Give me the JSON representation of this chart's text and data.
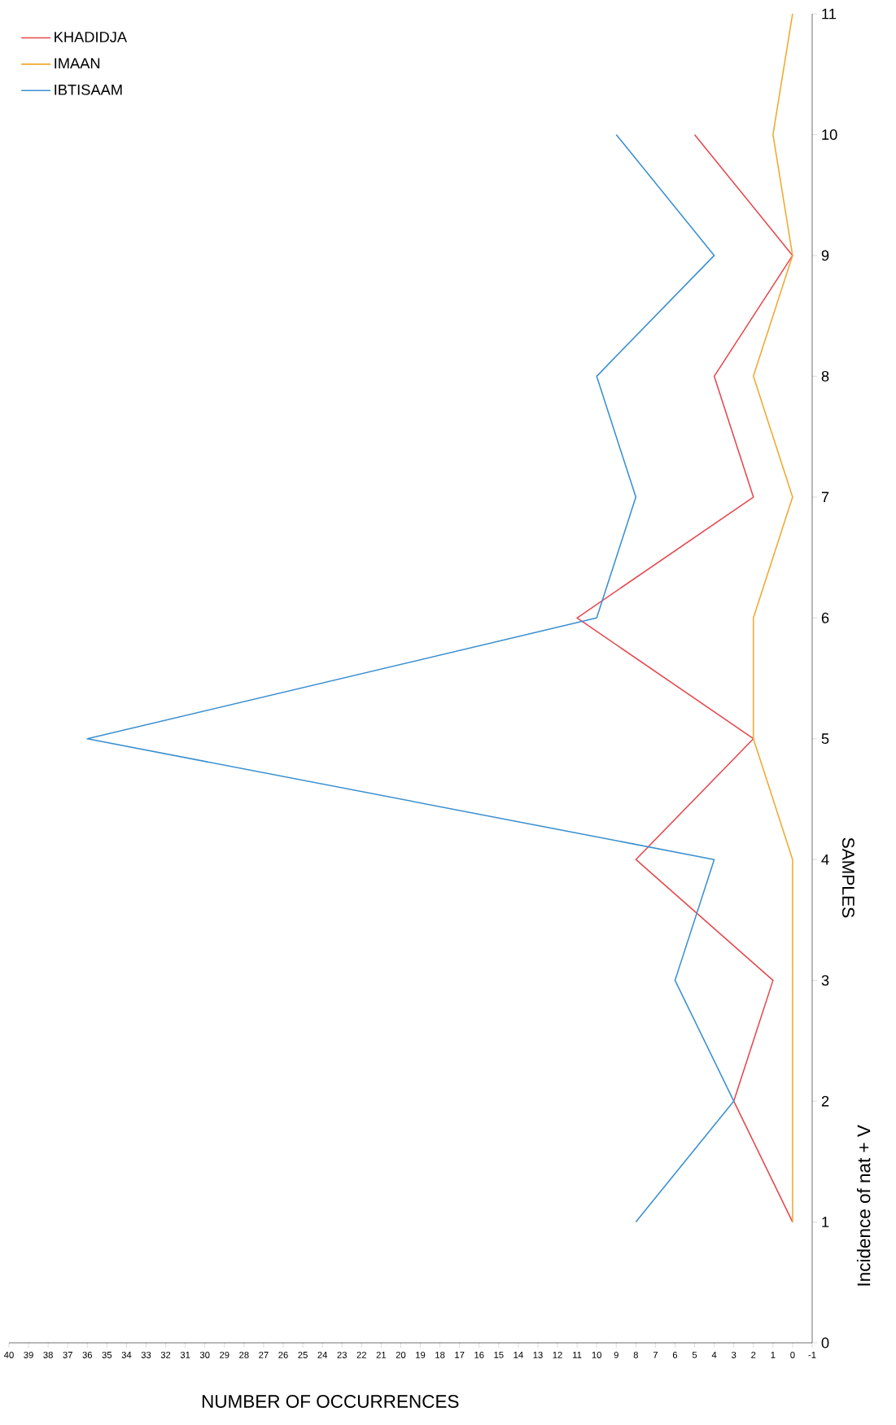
{
  "chart_data": {
    "type": "line",
    "xlabel": "NUMBER OF OCCURRENCES",
    "ylabel": "SAMPLES",
    "annotations": [
      "Incidence of nat + V"
    ],
    "xlim": [
      40,
      -1
    ],
    "xticks": [
      -1,
      0,
      1,
      2,
      3,
      4,
      5,
      6,
      7,
      8,
      9,
      10,
      11,
      12,
      13,
      14,
      15,
      16,
      17,
      18,
      19,
      20,
      21,
      22,
      23,
      24,
      25,
      26,
      27,
      28,
      29,
      30,
      31,
      32,
      33,
      34,
      35,
      36,
      37,
      38,
      39,
      40
    ],
    "ylim": [
      0,
      11
    ],
    "yticks": [
      0,
      1,
      2,
      3,
      4,
      5,
      6,
      7,
      8,
      9,
      10,
      11
    ],
    "legend": "top left",
    "marker": "none",
    "line_style": "solid",
    "series": [
      {
        "name": "KHADIDJA",
        "color": "#e5484d",
        "x": [
          0,
          3,
          1,
          8,
          2,
          11,
          2,
          4,
          0,
          5
        ],
        "values": [
          1,
          2,
          3,
          4,
          5,
          6,
          7,
          8,
          9,
          10
        ]
      },
      {
        "name": "IMAAN",
        "color": "#f0a830",
        "x": [
          0,
          0,
          0,
          0,
          2,
          2,
          0,
          2,
          0,
          1,
          0
        ],
        "values": [
          1,
          2,
          3,
          4,
          5,
          6,
          7,
          8,
          9,
          10,
          11
        ]
      },
      {
        "name": "IBTISAAM",
        "color": "#3a8fd0",
        "x": [
          8,
          3,
          6,
          4,
          36,
          10,
          8,
          10,
          4,
          9
        ],
        "values": [
          1,
          2,
          3,
          4,
          5,
          6,
          7,
          8,
          9,
          10
        ]
      }
    ]
  }
}
